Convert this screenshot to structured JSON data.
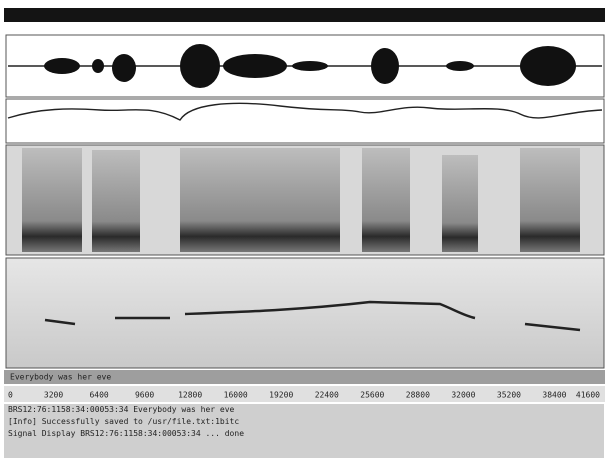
{
  "utterance_label": "Everybody was her eve",
  "time_axis": {
    "labels": [
      "0",
      "3200",
      "6400",
      "9600",
      "12800",
      "16000",
      "19200",
      "22400",
      "25600",
      "28800",
      "32000",
      "35200",
      "38400",
      "41600"
    ]
  },
  "log": {
    "lines": [
      "BRS12:76:1158:34:00053:34 Everybody was her eve",
      "[Info] Successfully saved to /usr/file.txt:1bitc",
      "Signal Display BRS12:76:1158:34:00053:34 ... done"
    ]
  }
}
